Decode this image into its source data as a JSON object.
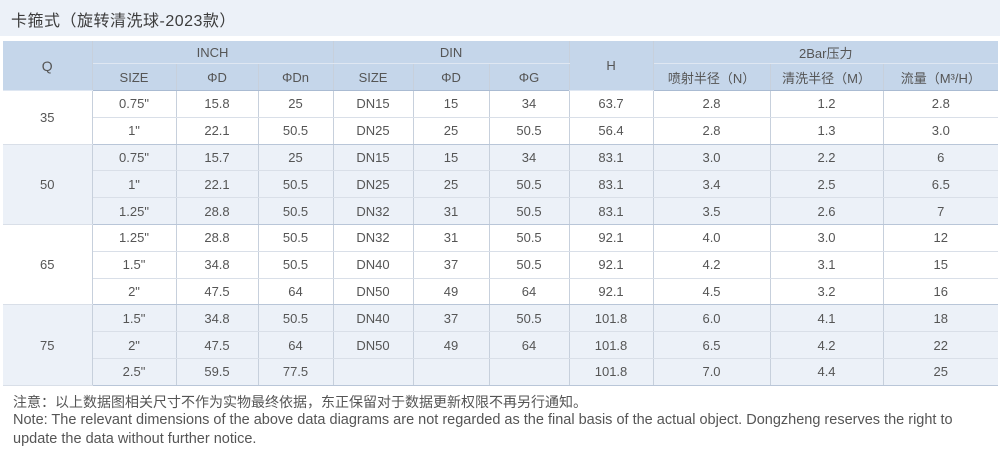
{
  "title": "卡箍式（旋转清洗球-2023款）",
  "header": {
    "q": "Q",
    "inch": "INCH",
    "din": "DIN",
    "h": "H",
    "pressure": "2Bar压力",
    "size": "SIZE",
    "phi_d": "ΦD",
    "phi_dn": "ΦDn",
    "din_size": "SIZE",
    "din_phi_d": "ΦD",
    "phi_g": "ΦG",
    "spray_radius": "喷射半径（N）",
    "clean_radius": "清洗半径（M）",
    "flow": "流量（M³/H）"
  },
  "groups": [
    {
      "q": "35",
      "rows": [
        [
          "0.75\"",
          "15.8",
          "25",
          "DN15",
          "15",
          "34",
          "63.7",
          "2.8",
          "1.2",
          "2.8"
        ],
        [
          "1\"",
          "22.1",
          "50.5",
          "DN25",
          "25",
          "50.5",
          "56.4",
          "2.8",
          "1.3",
          "3.0"
        ]
      ]
    },
    {
      "q": "50",
      "rows": [
        [
          "0.75\"",
          "15.7",
          "25",
          "DN15",
          "15",
          "34",
          "83.1",
          "3.0",
          "2.2",
          "6"
        ],
        [
          "1\"",
          "22.1",
          "50.5",
          "DN25",
          "25",
          "50.5",
          "83.1",
          "3.4",
          "2.5",
          "6.5"
        ],
        [
          "1.25\"",
          "28.8",
          "50.5",
          "DN32",
          "31",
          "50.5",
          "83.1",
          "3.5",
          "2.6",
          "7"
        ]
      ]
    },
    {
      "q": "65",
      "rows": [
        [
          "1.25\"",
          "28.8",
          "50.5",
          "DN32",
          "31",
          "50.5",
          "92.1",
          "4.0",
          "3.0",
          "12"
        ],
        [
          "1.5\"",
          "34.8",
          "50.5",
          "DN40",
          "37",
          "50.5",
          "92.1",
          "4.2",
          "3.1",
          "15"
        ],
        [
          "2\"",
          "47.5",
          "64",
          "DN50",
          "49",
          "64",
          "92.1",
          "4.5",
          "3.2",
          "16"
        ]
      ]
    },
    {
      "q": "75",
      "rows": [
        [
          "1.5\"",
          "34.8",
          "50.5",
          "DN40",
          "37",
          "50.5",
          "101.8",
          "6.0",
          "4.1",
          "18"
        ],
        [
          "2\"",
          "47.5",
          "64",
          "DN50",
          "49",
          "64",
          "101.8",
          "6.5",
          "4.2",
          "22"
        ],
        [
          "2.5\"",
          "59.5",
          "77.5",
          "",
          "",
          "",
          "101.8",
          "7.0",
          "4.4",
          "25"
        ]
      ]
    }
  ],
  "note_cn": "注意：以上数据图相关尺寸不作为实物最终依据，东正保留对于数据更新权限不再另行通知。",
  "note_en": "Note: The relevant dimensions of the above data diagrams are not regarded as the final basis of the actual object. Dongzheng reserves the right to update the data without further notice."
}
